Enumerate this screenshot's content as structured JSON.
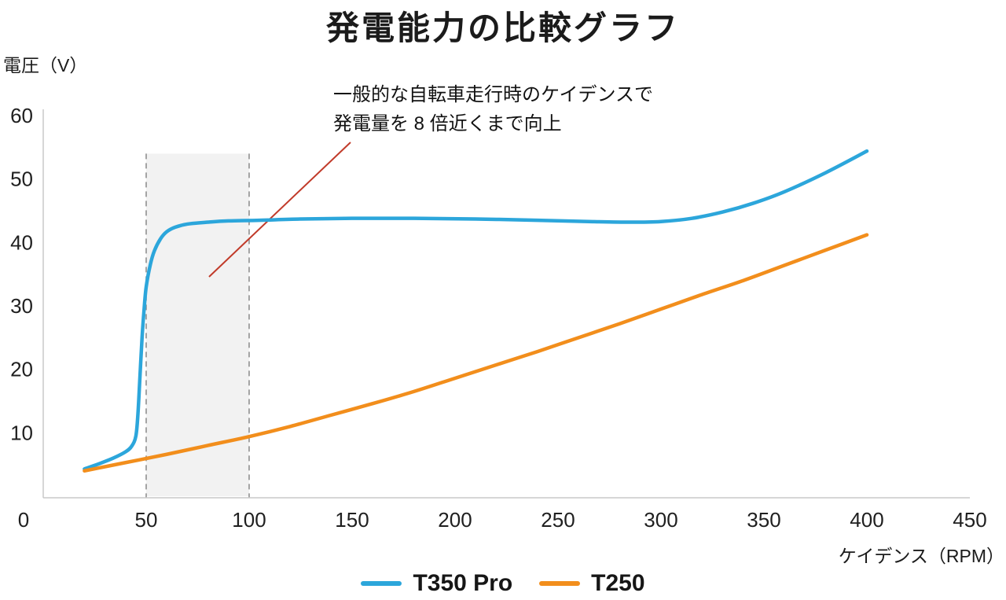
{
  "chart_data": {
    "type": "line",
    "title": "発電能力の比較グラフ",
    "ylabel": "電圧（V）",
    "xlabel": "ケイデンス（RPM）",
    "xlim": [
      0,
      450
    ],
    "ylim": [
      0,
      60
    ],
    "xticks": [
      0,
      50,
      100,
      150,
      200,
      250,
      300,
      350,
      400,
      450
    ],
    "yticks": [
      10,
      20,
      30,
      40,
      50,
      60
    ],
    "grid": false,
    "legend_position": "bottom",
    "annotation_text": [
      "一般的な自転車走行時のケイデンスで",
      "発電量を 8 倍近くまで向上"
    ],
    "highlight_region": {
      "x0": 50,
      "x1": 100,
      "y0": 0,
      "y1": 54
    },
    "series": [
      {
        "name": "T350 Pro",
        "color": "#2CA6DB",
        "points": [
          [
            20,
            4.3
          ],
          [
            27,
            5.1
          ],
          [
            34,
            6.0
          ],
          [
            40,
            7.0
          ],
          [
            43,
            7.9
          ],
          [
            45,
            9.5
          ],
          [
            46,
            13
          ],
          [
            47,
            19
          ],
          [
            48,
            25
          ],
          [
            49,
            29.5
          ],
          [
            50,
            33
          ],
          [
            52,
            36.5
          ],
          [
            54,
            38.7
          ],
          [
            57,
            40.6
          ],
          [
            60,
            41.7
          ],
          [
            64,
            42.4
          ],
          [
            70,
            42.9
          ],
          [
            80,
            43.2
          ],
          [
            90,
            43.4
          ],
          [
            105,
            43.5
          ],
          [
            125,
            43.7
          ],
          [
            150,
            43.8
          ],
          [
            180,
            43.8
          ],
          [
            210,
            43.7
          ],
          [
            240,
            43.5
          ],
          [
            265,
            43.3
          ],
          [
            285,
            43.2
          ],
          [
            300,
            43.3
          ],
          [
            315,
            43.8
          ],
          [
            330,
            44.8
          ],
          [
            345,
            46.2
          ],
          [
            360,
            48
          ],
          [
            380,
            51
          ],
          [
            400,
            54.4
          ]
        ]
      },
      {
        "name": "T250",
        "color": "#F28E1C",
        "points": [
          [
            20,
            4
          ],
          [
            40,
            5.3
          ],
          [
            60,
            6.6
          ],
          [
            80,
            8
          ],
          [
            100,
            9.4
          ],
          [
            120,
            11
          ],
          [
            140,
            12.8
          ],
          [
            160,
            14.6
          ],
          [
            180,
            16.5
          ],
          [
            200,
            18.6
          ],
          [
            220,
            20.7
          ],
          [
            240,
            22.8
          ],
          [
            260,
            25
          ],
          [
            280,
            27.2
          ],
          [
            300,
            29.5
          ],
          [
            320,
            31.8
          ],
          [
            340,
            34
          ],
          [
            360,
            36.4
          ],
          [
            380,
            38.8
          ],
          [
            400,
            41.2
          ]
        ]
      }
    ]
  },
  "colors": {
    "annotation_line": "#C13B2A",
    "axis": "#C9C9C9",
    "tick_text": "#1F1F1F",
    "highlight_fill": "#EDEDED",
    "highlight_border": "#8F8F8F"
  }
}
